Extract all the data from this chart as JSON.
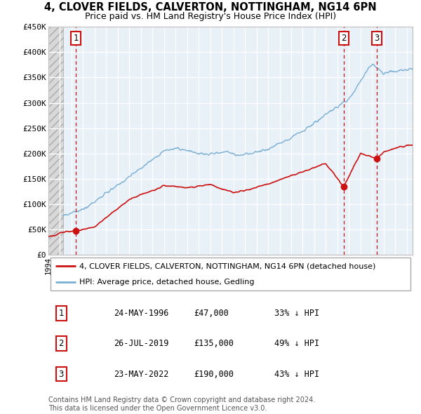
{
  "title": "4, CLOVER FIELDS, CALVERTON, NOTTINGHAM, NG14 6PN",
  "subtitle": "Price paid vs. HM Land Registry's House Price Index (HPI)",
  "ylim": [
    0,
    450000
  ],
  "yticks": [
    0,
    50000,
    100000,
    150000,
    200000,
    250000,
    300000,
    350000,
    400000,
    450000
  ],
  "ytick_labels": [
    "£0",
    "£50K",
    "£100K",
    "£150K",
    "£200K",
    "£250K",
    "£300K",
    "£350K",
    "£400K",
    "£450K"
  ],
  "xmin": 1994.0,
  "xmax": 2025.5,
  "hatch_end": 1995.3,
  "sales": [
    {
      "label": "1",
      "date_num": 1996.38,
      "price": 47000
    },
    {
      "label": "2",
      "date_num": 2019.56,
      "price": 135000
    },
    {
      "label": "3",
      "date_num": 2022.38,
      "price": 190000
    }
  ],
  "hpi_color": "#7aafd4",
  "price_color": "#cc1111",
  "background_main": "#e8f0f8",
  "legend_entries": [
    "4, CLOVER FIELDS, CALVERTON, NOTTINGHAM, NG14 6PN (detached house)",
    "HPI: Average price, detached house, Gedling"
  ],
  "table_rows": [
    [
      "1",
      "24-MAY-1996",
      "£47,000",
      "33% ↓ HPI"
    ],
    [
      "2",
      "26-JUL-2019",
      "£135,000",
      "49% ↓ HPI"
    ],
    [
      "3",
      "23-MAY-2022",
      "£190,000",
      "43% ↓ HPI"
    ]
  ],
  "footnote": "Contains HM Land Registry data © Crown copyright and database right 2024.\nThis data is licensed under the Open Government Licence v3.0."
}
